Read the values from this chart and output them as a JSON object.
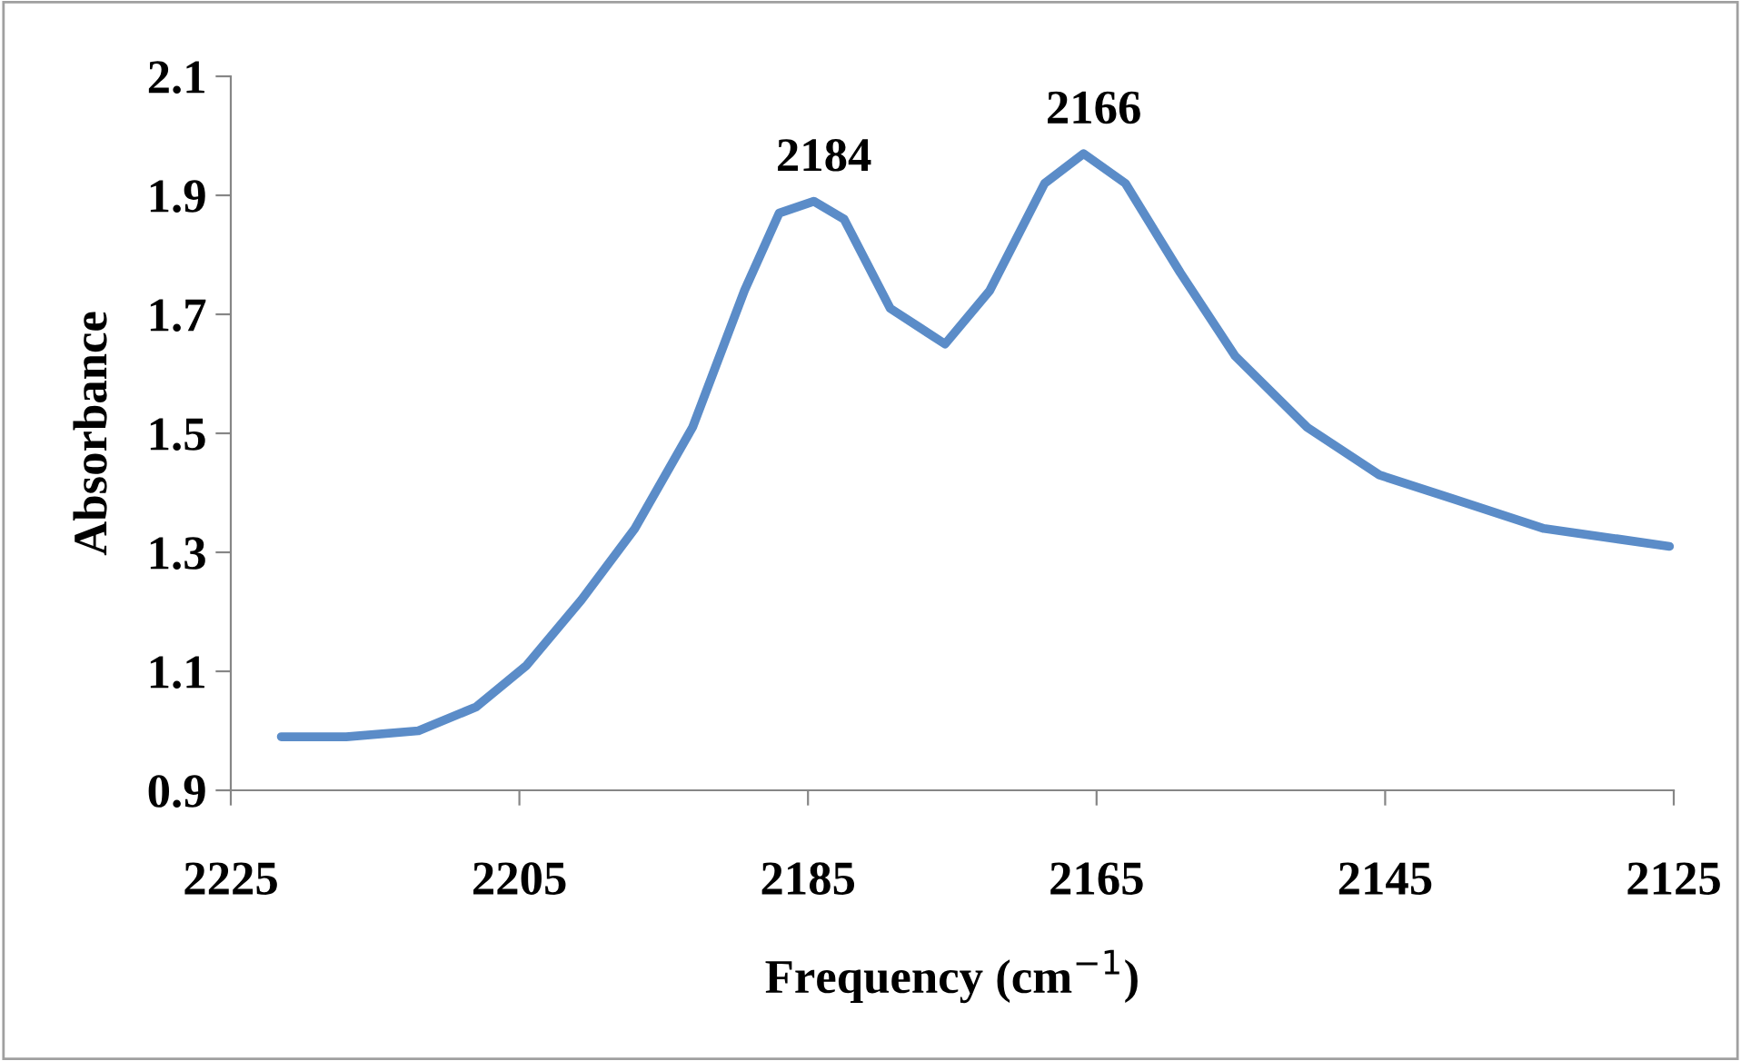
{
  "chart_data": {
    "type": "line",
    "xlabel": "Frequency (cm$^{−1}$)",
    "ylabel": "Absorbance",
    "x": [
      2221.5,
      2217,
      2212,
      2208,
      2204.5,
      2200.7,
      2197,
      2193,
      2189.4,
      2187,
      2184.6,
      2182.5,
      2179.3,
      2175.5,
      2172.4,
      2168.6,
      2165.9,
      2163,
      2159.2,
      2155.4,
      2150.4,
      2145.4,
      2140.3,
      2134,
      2125.3
    ],
    "series": [
      {
        "color": "#5b8cc8",
        "values": [
          0.99,
          0.99,
          1.0,
          1.04,
          1.11,
          1.22,
          1.34,
          1.51,
          1.74,
          1.87,
          1.89,
          1.86,
          1.71,
          1.65,
          1.74,
          1.92,
          1.97,
          1.92,
          1.77,
          1.63,
          1.51,
          1.43,
          1.39,
          1.34,
          1.31
        ]
      }
    ],
    "xlim": [
      2225,
      2125
    ],
    "xticks": [
      2225,
      2205,
      2185,
      2165,
      2145,
      2125
    ],
    "ylim": [
      0.9,
      2.1
    ],
    "yticks": [
      0.9,
      1.1,
      1.3,
      1.5,
      1.7,
      1.9,
      2.1
    ],
    "annotations": [
      {
        "text": "2184",
        "x": 2184.6,
        "y": 1.89
      },
      {
        "text": "2166",
        "x": 2165.9,
        "y": 1.97
      }
    ],
    "grid": false,
    "legend": false,
    "marker": "none",
    "line_style": "solid"
  }
}
